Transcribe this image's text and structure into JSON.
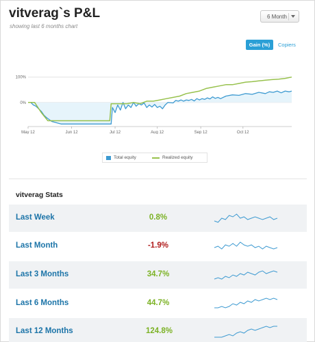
{
  "header": {
    "title": "vitverag`s P&L",
    "subtitle": "showing last 6 months chart",
    "period_select": "6 Month"
  },
  "toggles": {
    "gain": "Gain (%)",
    "copiers": "Copiers"
  },
  "chart_data": {
    "type": "line",
    "x_ticks": [
      "May 12",
      "Jun 12",
      "Jul 12",
      "Aug 12",
      "Sep 12",
      "Oct 12"
    ],
    "y_ticks": [
      "100%",
      "0%"
    ],
    "ylim": [
      -95,
      110
    ],
    "grid": true,
    "legend_position": "bottom",
    "colors": {
      "total": "#3d9ad1",
      "realized": "#97c14c",
      "fill": "#e6f4fb"
    },
    "series": [
      {
        "name": "Total equity",
        "x": [
          0,
          2,
          4,
          6,
          8,
          10,
          12,
          14,
          18,
          25,
          35,
          45,
          55,
          60,
          63,
          64,
          66,
          68,
          70,
          72,
          74,
          76,
          78,
          80,
          82,
          84,
          86,
          88,
          90,
          92,
          94,
          96,
          98,
          100,
          102,
          104,
          106,
          110,
          112,
          114,
          116,
          118,
          120,
          122,
          124,
          126,
          128,
          130,
          132,
          134,
          136,
          138,
          140,
          142,
          144,
          146,
          150,
          155,
          160,
          165,
          170,
          175,
          180,
          183,
          186,
          189,
          192,
          195,
          198,
          200
        ],
        "y": [
          0,
          0,
          -10,
          -15,
          -25,
          -35,
          -50,
          -60,
          -75,
          -85,
          -85,
          -85,
          -85,
          -85,
          -85,
          -20,
          -40,
          -10,
          -30,
          0,
          -25,
          -10,
          -20,
          0,
          -15,
          -5,
          -10,
          -2,
          -20,
          -10,
          -18,
          -8,
          -20,
          -15,
          -25,
          -10,
          0,
          -2,
          8,
          5,
          10,
          5,
          10,
          8,
          12,
          6,
          15,
          10,
          15,
          12,
          18,
          14,
          22,
          16,
          20,
          15,
          25,
          30,
          28,
          35,
          32,
          40,
          35,
          42,
          40,
          45,
          38,
          45,
          42,
          45
        ]
      },
      {
        "name": "Realized equity",
        "x": [
          0,
          5,
          10,
          15,
          20,
          30,
          40,
          50,
          60,
          62,
          63,
          64,
          65,
          70,
          75,
          80,
          85,
          90,
          95,
          100,
          105,
          110,
          115,
          120,
          125,
          130,
          135,
          140,
          145,
          150,
          155,
          160,
          165,
          170,
          175,
          180,
          185,
          190,
          195,
          200
        ],
        "y": [
          0,
          0,
          -40,
          -72,
          -72,
          -72,
          -72,
          -72,
          -72,
          -72,
          -5,
          -5,
          -5,
          -5,
          -5,
          0,
          -5,
          5,
          5,
          10,
          15,
          20,
          25,
          35,
          40,
          45,
          55,
          60,
          65,
          70,
          70,
          75,
          80,
          82,
          85,
          88,
          90,
          92,
          95,
          100
        ]
      }
    ]
  },
  "stats": {
    "title": "vitverag Stats",
    "rows": [
      {
        "label": "Last Week",
        "value": "0.8%",
        "color": "#7cb225",
        "spark": [
          0.3,
          0.2,
          0.5,
          0.4,
          0.7,
          0.6,
          0.8,
          0.5,
          0.6,
          0.4,
          0.5,
          0.6,
          0.5,
          0.4,
          0.5,
          0.6,
          0.4,
          0.5
        ]
      },
      {
        "label": "Last Month",
        "value": "-1.9%",
        "color": "#b01c1c",
        "spark": [
          0.4,
          0.5,
          0.3,
          0.6,
          0.5,
          0.7,
          0.5,
          0.8,
          0.6,
          0.5,
          0.6,
          0.4,
          0.5,
          0.3,
          0.5,
          0.4,
          0.3,
          0.4
        ]
      },
      {
        "label": "Last 3 Months",
        "value": "34.7%",
        "color": "#7cb225",
        "spark": [
          0.2,
          0.3,
          0.2,
          0.4,
          0.3,
          0.5,
          0.4,
          0.6,
          0.5,
          0.7,
          0.6,
          0.5,
          0.7,
          0.8,
          0.6,
          0.7,
          0.8,
          0.7
        ]
      },
      {
        "label": "Last 6 Months",
        "value": "44.7%",
        "color": "#7cb225",
        "spark": [
          0.2,
          0.2,
          0.3,
          0.2,
          0.3,
          0.5,
          0.4,
          0.6,
          0.5,
          0.7,
          0.6,
          0.8,
          0.7,
          0.8,
          0.9,
          0.8,
          0.9,
          0.8
        ]
      },
      {
        "label": "Last 12 Months",
        "value": "124.8%",
        "color": "#7cb225",
        "spark": [
          0.1,
          0.1,
          0.1,
          0.2,
          0.3,
          0.2,
          0.4,
          0.5,
          0.4,
          0.6,
          0.7,
          0.6,
          0.7,
          0.8,
          0.9,
          0.8,
          0.9,
          0.9
        ]
      }
    ]
  }
}
